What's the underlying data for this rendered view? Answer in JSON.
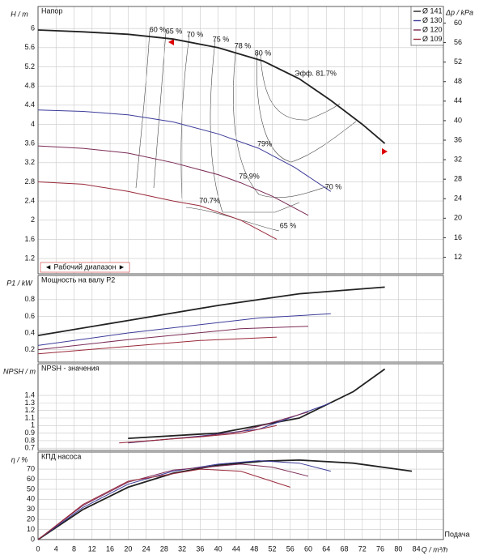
{
  "legend": [
    "Ø 141",
    "Ø 130",
    "Ø 120",
    "Ø 109"
  ],
  "chart_data": [
    {
      "type": "line",
      "title": "Напор",
      "ylabel": "H / m",
      "y2label": "Δp / kPa",
      "ylim": [
        0.88,
        6.46
      ],
      "yticks": [
        1.2,
        1.6,
        2,
        2.4,
        2.8,
        3.2,
        3.6,
        4,
        4.4,
        4.8,
        5.2,
        5.6,
        6
      ],
      "y2lim": [
        8.6,
        63.4
      ],
      "y2ticks": [
        12,
        16,
        20,
        24,
        28,
        32,
        36,
        40,
        44,
        48,
        52,
        56,
        60
      ],
      "range_label": "◄ Рабочий диапазон ►",
      "annotations": [
        "60 %",
        "65 %",
        "70 %",
        "75 %",
        "78 %",
        "80 %",
        "Эфф.  81.7%",
        "79%",
        "75.9%",
        "70.7%",
        "70 %",
        "65 %"
      ],
      "series": [
        {
          "name": "Ø 141",
          "color": "#222222",
          "x": [
            0,
            10,
            20,
            30,
            40,
            50,
            58,
            65,
            72,
            77
          ],
          "values": [
            5.97,
            5.93,
            5.88,
            5.78,
            5.6,
            5.32,
            4.95,
            4.5,
            4.0,
            3.6
          ]
        },
        {
          "name": "Ø 130",
          "color": "#3c3c9a",
          "x": [
            0,
            10,
            20,
            30,
            40,
            49,
            57,
            65
          ],
          "values": [
            4.3,
            4.27,
            4.2,
            4.05,
            3.8,
            3.5,
            3.1,
            2.6
          ]
        },
        {
          "name": "Ø 120",
          "color": "#7a2a55",
          "x": [
            0,
            10,
            20,
            30,
            40,
            45,
            52,
            60
          ],
          "values": [
            3.55,
            3.5,
            3.4,
            3.2,
            2.95,
            2.78,
            2.5,
            2.1
          ]
        },
        {
          "name": "Ø 109",
          "color": "#9a2a3a",
          "x": [
            0,
            10,
            20,
            30,
            36,
            45,
            53
          ],
          "values": [
            2.8,
            2.75,
            2.6,
            2.4,
            2.3,
            2.0,
            1.6
          ]
        }
      ]
    },
    {
      "type": "line",
      "title": "Мощность на валу P2",
      "ylabel": "P1 / kW",
      "ylim": [
        0.05,
        1.09
      ],
      "yticks": [
        0.2,
        0.4,
        0.6,
        0.8
      ],
      "series": [
        {
          "name": "Ø 141",
          "color": "#222222",
          "x": [
            0,
            20,
            40,
            58,
            77
          ],
          "values": [
            0.37,
            0.55,
            0.73,
            0.87,
            0.95
          ]
        },
        {
          "name": "Ø 130",
          "color": "#3c3c9a",
          "x": [
            0,
            20,
            49,
            65
          ],
          "values": [
            0.25,
            0.4,
            0.58,
            0.63
          ]
        },
        {
          "name": "Ø 120",
          "color": "#7a2a55",
          "x": [
            0,
            20,
            45,
            60
          ],
          "values": [
            0.2,
            0.32,
            0.45,
            0.48
          ]
        },
        {
          "name": "Ø 109",
          "color": "#9a2a3a",
          "x": [
            0,
            20,
            36,
            53
          ],
          "values": [
            0.15,
            0.24,
            0.31,
            0.35
          ]
        }
      ]
    },
    {
      "type": "line",
      "title": "NPSH - значения",
      "ylabel": "NPSH / m",
      "ylim": [
        0.67,
        1.82
      ],
      "yticks": [
        0.7,
        0.8,
        0.9,
        1,
        1.1,
        1.2,
        1.3,
        1.4
      ],
      "series": [
        {
          "name": "Ø 141",
          "color": "#222222",
          "x": [
            20,
            40,
            58,
            70,
            77
          ],
          "values": [
            0.83,
            0.9,
            1.1,
            1.45,
            1.75
          ]
        },
        {
          "name": "Ø 130",
          "color": "#3c3c9a",
          "x": [
            20,
            36,
            49,
            65
          ],
          "values": [
            0.77,
            0.86,
            0.95,
            1.3
          ]
        },
        {
          "name": "Ø 120",
          "color": "#7a2a55",
          "x": [
            20,
            36,
            45,
            60
          ],
          "values": [
            0.775,
            0.855,
            0.92,
            1.18
          ]
        },
        {
          "name": "Ø 109",
          "color": "#9a2a3a",
          "x": [
            18,
            36,
            45,
            53
          ],
          "values": [
            0.77,
            0.85,
            0.9,
            1.0
          ]
        }
      ]
    },
    {
      "type": "line",
      "title": "КПД насоса",
      "ylabel": "η / %",
      "xlabel": "Q / m³/h",
      "xcaption": "Подача",
      "xlim": [
        0,
        90
      ],
      "xticks": [
        0,
        4,
        8,
        12,
        16,
        20,
        24,
        28,
        32,
        36,
        40,
        44,
        48,
        52,
        56,
        60,
        64,
        68,
        72,
        76,
        80,
        84
      ],
      "ylim": [
        0,
        87
      ],
      "yticks": [
        0,
        10,
        20,
        30,
        40,
        50,
        60,
        70
      ],
      "series": [
        {
          "name": "Ø 141",
          "color": "#222222",
          "x": [
            0,
            10,
            20,
            30,
            40,
            50,
            58,
            70,
            83
          ],
          "values": [
            0,
            30,
            52,
            66,
            74,
            78,
            79,
            76,
            68
          ]
        },
        {
          "name": "Ø 130",
          "color": "#3c3c9a",
          "x": [
            0,
            10,
            20,
            30,
            40,
            49,
            58,
            65
          ],
          "values": [
            0,
            32,
            55,
            68,
            75,
            78.5,
            76,
            68
          ]
        },
        {
          "name": "Ø 120",
          "color": "#7a2a55",
          "x": [
            0,
            10,
            20,
            30,
            45,
            52,
            60
          ],
          "values": [
            0,
            34,
            57,
            69,
            75,
            72,
            63
          ]
        },
        {
          "name": "Ø 109",
          "color": "#9a2a3a",
          "x": [
            0,
            10,
            20,
            36,
            45,
            56
          ],
          "values": [
            0,
            35,
            58,
            70,
            68,
            52
          ]
        }
      ]
    }
  ]
}
